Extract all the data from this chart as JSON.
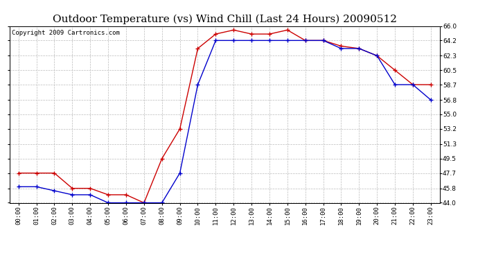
{
  "title": "Outdoor Temperature (vs) Wind Chill (Last 24 Hours) 20090512",
  "copyright": "Copyright 2009 Cartronics.com",
  "hours": [
    "00:00",
    "01:00",
    "02:00",
    "03:00",
    "04:00",
    "05:00",
    "06:00",
    "07:00",
    "08:00",
    "09:00",
    "10:00",
    "11:00",
    "12:00",
    "13:00",
    "14:00",
    "15:00",
    "16:00",
    "17:00",
    "18:00",
    "19:00",
    "20:00",
    "21:00",
    "22:00",
    "23:00"
  ],
  "temp": [
    47.7,
    47.7,
    47.7,
    45.8,
    45.8,
    45.0,
    45.0,
    44.0,
    49.5,
    53.2,
    63.2,
    65.0,
    65.5,
    65.0,
    65.0,
    65.5,
    64.2,
    64.2,
    63.5,
    63.2,
    62.3,
    60.5,
    58.7,
    58.7
  ],
  "windchill": [
    46.0,
    46.0,
    45.5,
    45.0,
    45.0,
    44.0,
    44.0,
    44.0,
    44.0,
    47.7,
    58.7,
    64.2,
    64.2,
    64.2,
    64.2,
    64.2,
    64.2,
    64.2,
    63.2,
    63.2,
    62.3,
    58.7,
    58.7,
    56.8
  ],
  "temp_color": "#cc0000",
  "windchill_color": "#0000cc",
  "background_color": "#ffffff",
  "grid_color": "#bbbbbb",
  "ylim": [
    44.0,
    66.0
  ],
  "yticks": [
    44.0,
    45.8,
    47.7,
    49.5,
    51.3,
    53.2,
    55.0,
    56.8,
    58.7,
    60.5,
    62.3,
    64.2,
    66.0
  ],
  "title_fontsize": 11,
  "copyright_fontsize": 6.5,
  "tick_fontsize": 6.5,
  "marker_size": 4,
  "linewidth": 1.0
}
